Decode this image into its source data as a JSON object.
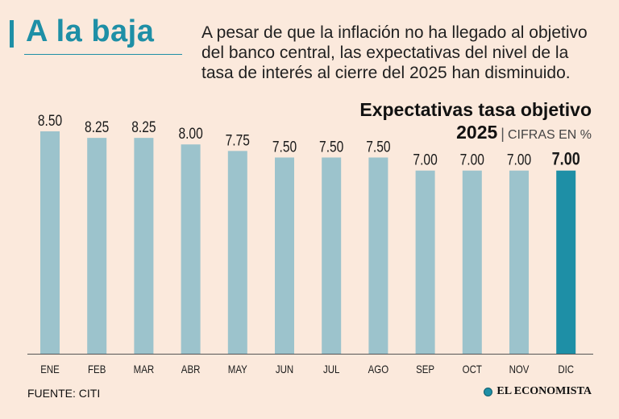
{
  "header": {
    "headline": "A la baja",
    "description": "A pesar de que la inflación no ha llegado al objetivo del banco central, las expectativas del nivel de la tasa de interés al cierre del 2025 han disminuido."
  },
  "chart_data": {
    "type": "bar",
    "title": "Expectativas tasa objetivo",
    "subtitle_year": "2025",
    "subtitle_separator": "|",
    "subtitle_unit": "CIFRAS EN %",
    "categories": [
      "ENE",
      "FEB",
      "MAR",
      "ABR",
      "MAY",
      "JUN",
      "JUL",
      "AGO",
      "SEP",
      "OCT",
      "NOV",
      "DIC"
    ],
    "values": [
      8.5,
      8.25,
      8.25,
      8.0,
      7.75,
      7.5,
      7.5,
      7.5,
      7.0,
      7.0,
      7.0,
      7.0
    ],
    "labels": [
      "8.50",
      "8.25",
      "8.25",
      "8.00",
      "7.75",
      "7.50",
      "7.50",
      "7.50",
      "7.00",
      "7.00",
      "7.00",
      "7.00"
    ],
    "highlight_index": 11,
    "ylim": [
      0,
      8.5
    ],
    "grid": false,
    "colors": {
      "bar": "#9cc3cc",
      "highlight": "#1e8fa6",
      "axis": "#555555"
    }
  },
  "footer": {
    "source": "FUENTE: CITI",
    "brand": "EL ECONOMISTA",
    "brand_icon": "globe-icon"
  }
}
